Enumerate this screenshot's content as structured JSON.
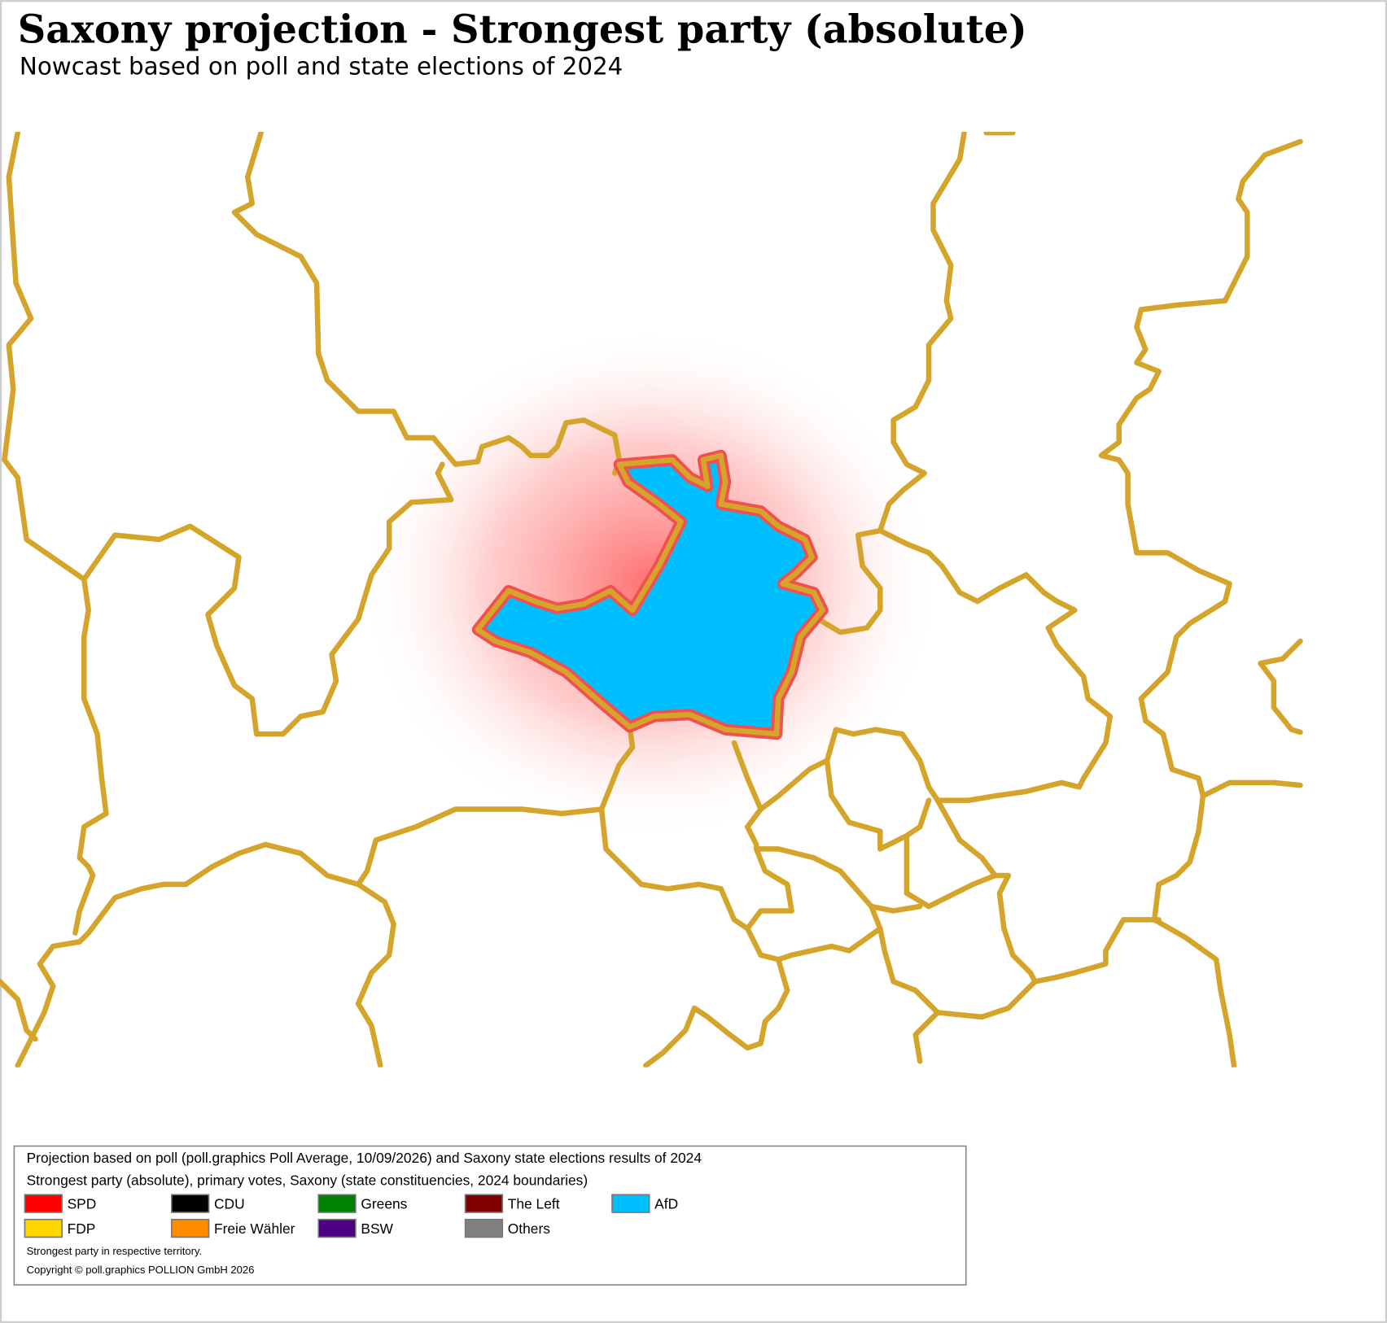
{
  "header": {
    "title": "Saxony projection - Strongest party (absolute)",
    "subtitle": "Nowcast based on poll and state elections of 2024"
  },
  "legend": {
    "lines": [
      "Projection based on poll (poll.graphics Poll Average, 10/09/2026) and Saxony state elections results of 2024",
      "Strongest party (absolute), primary votes, Saxony (state constituencies, 2024 boundaries)"
    ],
    "items": [
      {
        "label": "SPD",
        "color": "#ff0000"
      },
      {
        "label": "CDU",
        "color": "#000000"
      },
      {
        "label": "Greens",
        "color": "#008000"
      },
      {
        "label": "The Left",
        "color": "#800000"
      },
      {
        "label": "AfD",
        "color": "#00bfff"
      },
      {
        "label": "FDP",
        "color": "#ffd700"
      },
      {
        "label": "Freie Wähler",
        "color": "#ff8c00"
      },
      {
        "label": "BSW",
        "color": "#4b0082"
      },
      {
        "label": "Others",
        "color": "#808080"
      }
    ],
    "notes": [
      "Strongest party in respective territory.",
      "Copyright © poll.graphics POLLION GmbH 2026"
    ]
  }
}
